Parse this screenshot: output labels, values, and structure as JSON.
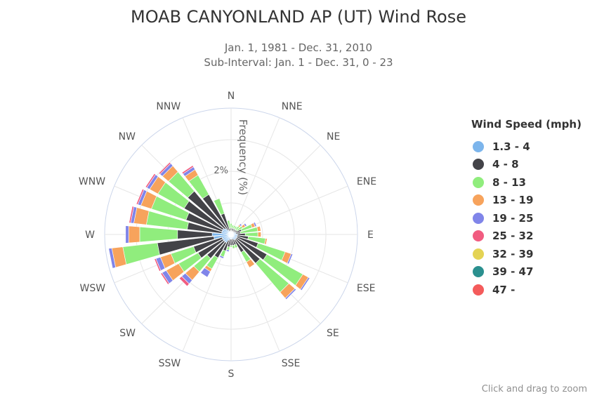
{
  "chart_data": {
    "type": "windrose",
    "title": "MOAB CANYONLAND AP (UT) Wind Rose",
    "subtitle": [
      "Jan. 1, 1981 - Dec. 31, 2010",
      "Sub-Interval: Jan. 1 - Dec. 31, 0 - 23"
    ],
    "radial_axis": {
      "label": "Frequency (%)",
      "tick_labels": [
        "2%"
      ],
      "ticks": [
        1,
        2,
        3,
        4
      ],
      "max": 4
    },
    "directions": [
      "N",
      "",
      "NNE",
      "",
      "NE",
      "",
      "ENE",
      "",
      "E",
      "",
      "ESE",
      "",
      "SE",
      "",
      "SSE",
      "",
      "S",
      "",
      "SSW",
      "",
      "SW",
      "",
      "WSW",
      "",
      "W",
      "",
      "WNW",
      "",
      "NW",
      "",
      "NNW",
      ""
    ],
    "series": [
      {
        "name": "1.3 - 4",
        "color": "#7cb5ec",
        "values": [
          0.1,
          0.1,
          0.1,
          0.1,
          0.1,
          0.12,
          0.15,
          0.15,
          0.2,
          0.2,
          0.2,
          0.2,
          0.2,
          0.2,
          0.15,
          0.15,
          0.15,
          0.15,
          0.2,
          0.3,
          0.3,
          0.3,
          0.3,
          0.55,
          0.6,
          0.3,
          0.3,
          0.3,
          0.25,
          0.15,
          0.1,
          0.1
        ]
      },
      {
        "name": "4 - 8",
        "color": "#434348",
        "values": [
          0.1,
          0.1,
          0.1,
          0.1,
          0.1,
          0.1,
          0.2,
          0.15,
          0.25,
          0.35,
          0.7,
          1.1,
          1.0,
          0.45,
          0.2,
          0.2,
          0.2,
          0.25,
          0.35,
          0.55,
          0.7,
          0.9,
          0.95,
          1.8,
          1.1,
          1.1,
          1.2,
          1.4,
          1.55,
          1.3,
          0.6,
          0.1
        ]
      },
      {
        "name": "8 - 13",
        "color": "#90ed7d",
        "values": [
          0.15,
          0.1,
          0.1,
          0.1,
          0.15,
          0.2,
          0.35,
          0.55,
          0.4,
          0.55,
          0.9,
          1.3,
          1.2,
          0.35,
          0.1,
          0.1,
          0.05,
          0.1,
          0.2,
          0.4,
          0.55,
          0.7,
          0.75,
          1.1,
          1.2,
          1.3,
          1.15,
          0.95,
          0.8,
          0.7,
          0.5,
          0.25
        ]
      },
      {
        "name": "13 - 19",
        "color": "#f7a35c",
        "values": [
          0.0,
          0.0,
          0.0,
          0.0,
          0.05,
          0.1,
          0.1,
          0.1,
          0.1,
          0.05,
          0.2,
          0.2,
          0.25,
          0.2,
          0.0,
          0.0,
          0.0,
          0.0,
          0.0,
          0.1,
          0.35,
          0.45,
          0.35,
          0.35,
          0.35,
          0.4,
          0.35,
          0.3,
          0.25,
          0.2,
          0.0,
          0.0
        ]
      },
      {
        "name": "19 - 25",
        "color": "#8085e9",
        "values": [
          0.0,
          0.0,
          0.0,
          0.0,
          0.05,
          0.05,
          0.05,
          0.0,
          0.0,
          0.0,
          0.05,
          0.05,
          0.05,
          0.0,
          0.0,
          0.0,
          0.0,
          0.05,
          0.05,
          0.2,
          0.15,
          0.15,
          0.15,
          0.1,
          0.1,
          0.1,
          0.1,
          0.1,
          0.1,
          0.1,
          0.0,
          0.0
        ]
      },
      {
        "name": "25 - 32",
        "color": "#f15c80",
        "values": [
          0.0,
          0.0,
          0.0,
          0.0,
          0.0,
          0.0,
          0.0,
          0.0,
          0.0,
          0.0,
          0.0,
          0.0,
          0.0,
          0.0,
          0.0,
          0.0,
          0.0,
          0.0,
          0.0,
          0.0,
          0.1,
          0.05,
          0.05,
          0.0,
          0.0,
          0.05,
          0.05,
          0.05,
          0.05,
          0.05,
          0.0,
          0.0
        ]
      },
      {
        "name": "32 - 39",
        "color": "#e4d354",
        "values": [
          0,
          0,
          0,
          0,
          0,
          0,
          0,
          0,
          0,
          0,
          0,
          0,
          0,
          0,
          0,
          0,
          0,
          0,
          0,
          0,
          0,
          0,
          0,
          0,
          0,
          0,
          0,
          0,
          0,
          0,
          0,
          0
        ]
      },
      {
        "name": "39 - 47",
        "color": "#2b908f",
        "values": [
          0,
          0,
          0,
          0,
          0,
          0,
          0,
          0,
          0,
          0,
          0,
          0,
          0,
          0,
          0,
          0,
          0,
          0,
          0,
          0,
          0,
          0,
          0,
          0,
          0,
          0,
          0,
          0,
          0,
          0,
          0,
          0
        ]
      },
      {
        "name": "47 -",
        "color": "#f45b5b",
        "values": [
          0,
          0,
          0,
          0,
          0,
          0,
          0,
          0,
          0,
          0,
          0,
          0,
          0,
          0,
          0,
          0,
          0,
          0,
          0,
          0,
          0,
          0,
          0,
          0,
          0,
          0,
          0,
          0,
          0,
          0,
          0,
          0
        ]
      }
    ],
    "legend": {
      "title": "Wind Speed (mph)",
      "position": "right"
    }
  },
  "credit": "Click and drag to zoom"
}
